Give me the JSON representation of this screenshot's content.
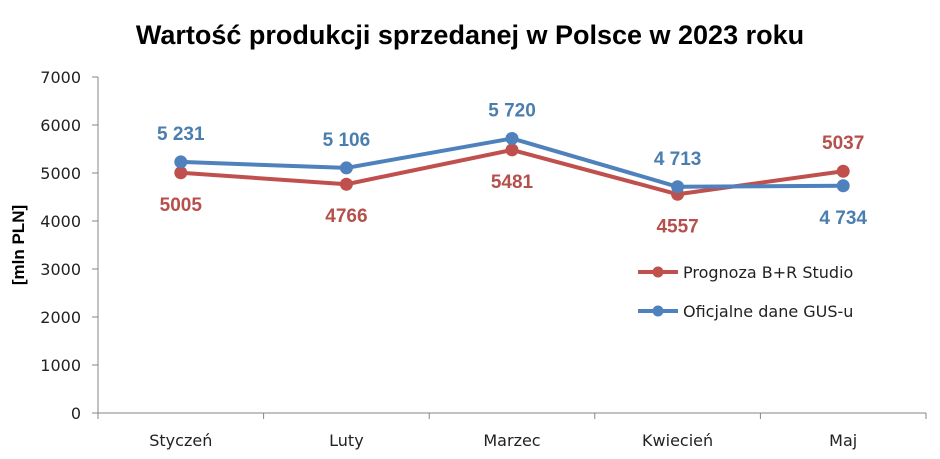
{
  "chart_data": {
    "type": "line",
    "title": "Wartość produkcji sprzedanej w Polsce w 2023 roku",
    "xlabel": "",
    "ylabel": "[mln PLN]",
    "categories": [
      "Styczeń",
      "Luty",
      "Marzec",
      "Kwiecień",
      "Maj"
    ],
    "ylim": [
      0,
      7000
    ],
    "yticks": [
      0,
      1000,
      2000,
      3000,
      4000,
      5000,
      6000,
      7000
    ],
    "ytick_labels": [
      "0",
      "1000",
      "2000",
      "3000",
      "4000",
      "5000",
      "6000",
      "7000"
    ],
    "grid": false,
    "legend_position": "right-inside",
    "series": [
      {
        "name": "Prognoza B+R Studio",
        "color": "#C0504D",
        "label_color": "#B5504C",
        "values": [
          5005,
          4766,
          5481,
          4557,
          5037
        ],
        "labels": [
          "5005",
          "4766",
          "5481",
          "4557",
          "5037"
        ],
        "label_positions": [
          "below",
          "below",
          "below",
          "below",
          "above"
        ]
      },
      {
        "name": "Oficjalne dane GUS-u",
        "color": "#4F81BD",
        "label_color": "#4A7EAF",
        "values": [
          5231,
          5106,
          5720,
          4713,
          4734
        ],
        "labels": [
          "5 231",
          "5 106",
          "5 720",
          "4 713",
          "4 734"
        ],
        "label_positions": [
          "above",
          "above",
          "above",
          "above",
          "below"
        ]
      }
    ]
  }
}
